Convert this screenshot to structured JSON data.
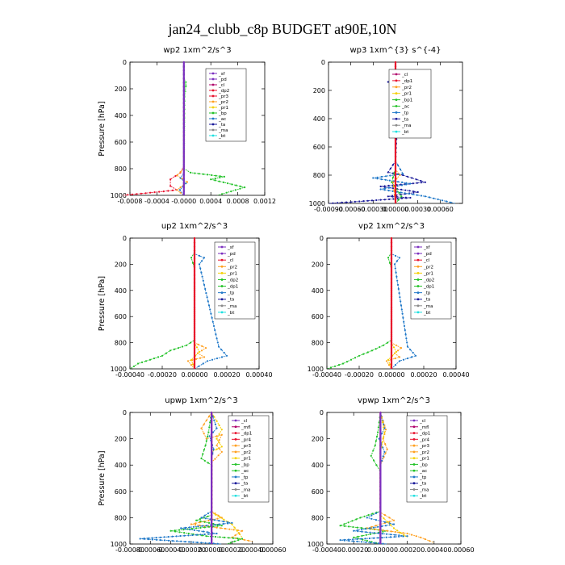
{
  "figure_title": "jan24_clubb_c8p  BUDGET at90E,10N",
  "colors": {
    "purple": "#7b2fbf",
    "magenta": "#b0006a",
    "red": "#e8112d",
    "orange": "#ffa020",
    "yellow": "#f5d000",
    "green": "#22c228",
    "blue": "#1f78c8",
    "navy": "#1a1a9a",
    "cyan": "#1ee0e0",
    "gray": "#8a8a8a",
    "lightgreen": "#9ae89a"
  },
  "chart_data": [
    {
      "id": "wp2",
      "type": "line",
      "title": "wp2   1xm^2/s^3",
      "ylabel": "Pressure [hPa]",
      "xlim": [
        -0.0008,
        0.0012
      ],
      "ylim": [
        1000,
        0
      ],
      "xticks": [
        -0.0008,
        -0.0004,
        0.0,
        0.0004,
        0.0008,
        0.0012
      ],
      "xtick_labels": [
        "-0.0008",
        "-0.0004",
        "-0.0000",
        "0.0004",
        "0.0008",
        "0.0012"
      ],
      "yticks": [
        0,
        200,
        400,
        600,
        800,
        1000
      ],
      "legend": [
        "_sf",
        "_pd",
        "_cl",
        "_dp2",
        "_pr3",
        "_pr2",
        "_pr1",
        "_bp",
        "_ac",
        "_ta",
        "_ma",
        "_bt"
      ],
      "legend_colors": [
        "purple",
        "purple",
        "magenta",
        "red",
        "red",
        "orange",
        "yellow",
        "green",
        "blue",
        "navy",
        "gray",
        "cyan"
      ],
      "series": [
        {
          "color": "green",
          "x": [
            0,
            0,
            3e-05,
            3e-05,
            1e-05,
            0,
            0.0001,
            0.0006,
            0.0004,
            0.0009,
            0.0005
          ],
          "y": [
            0,
            120,
            150,
            180,
            260,
            800,
            830,
            860,
            880,
            940,
            1000
          ]
        },
        {
          "color": "lightgreen",
          "x": [
            0,
            0,
            2e-05,
            1e-05,
            0
          ],
          "y": [
            0,
            130,
            160,
            190,
            1000
          ]
        },
        {
          "color": "red",
          "x": [
            0,
            0,
            -5e-05,
            -0.0002,
            -0.0002,
            -0.0001,
            -0.0005,
            -0.0009
          ],
          "y": [
            0,
            780,
            830,
            880,
            930,
            960,
            980,
            1000
          ]
        },
        {
          "color": "orange",
          "x": [
            0,
            0,
            -0.0001,
            5e-05,
            -0.0001,
            0
          ],
          "y": [
            0,
            800,
            850,
            900,
            960,
            1000
          ]
        },
        {
          "color": "blue",
          "x": [
            0,
            0,
            -5e-05,
            3e-05,
            -6e-05,
            0
          ],
          "y": [
            0,
            830,
            870,
            910,
            960,
            1000
          ]
        },
        {
          "color": "purple",
          "x": [
            0,
            0
          ],
          "y": [
            0,
            1000
          ]
        }
      ]
    },
    {
      "id": "wp3",
      "type": "line",
      "title": "wp3   1xm^{3} s^{-4}",
      "ylabel": "",
      "xlim": [
        -0.0009,
        0.0009
      ],
      "ylim": [
        1000,
        0
      ],
      "xticks": [
        -0.0009,
        -0.0006,
        -0.0003,
        0.0,
        0.0003,
        0.0006
      ],
      "xtick_labels": [
        "-0.00090",
        "-0.00060",
        "-0.00030",
        "0.00000",
        "0.00030",
        "0.00060"
      ],
      "yticks": [
        0,
        200,
        400,
        600,
        800,
        1000
      ],
      "legend": [
        "_cl",
        "_dp1",
        "_pr2",
        "_pr1",
        "_bp1",
        "_ac",
        "_tp",
        "_ta",
        "_ma",
        "_bt"
      ],
      "legend_colors": [
        "magenta",
        "red",
        "orange",
        "yellow",
        "green",
        "green",
        "blue",
        "navy",
        "gray",
        "cyan"
      ],
      "series": [
        {
          "color": "navy",
          "x": [
            0,
            0,
            -0.0001,
            4e-05,
            -4e-05,
            3e-05,
            0,
            -0.0001,
            0.0001,
            0.0004,
            -0.0002,
            0.0003,
            -0.0001,
            0.0002,
            -0.0006,
            -0.0009
          ],
          "y": [
            0,
            120,
            140,
            170,
            280,
            330,
            700,
            780,
            800,
            850,
            880,
            920,
            950,
            960,
            990,
            1000
          ]
        },
        {
          "color": "blue",
          "x": [
            0,
            0,
            0.0001,
            -0.0003,
            0.0002,
            -0.0002,
            0.0004,
            0.0008
          ],
          "y": [
            0,
            700,
            790,
            820,
            860,
            900,
            950,
            1000
          ]
        },
        {
          "color": "green",
          "x": [
            0,
            0,
            -5e-05,
            8e-05,
            0
          ],
          "y": [
            0,
            750,
            850,
            950,
            1000
          ]
        },
        {
          "color": "orange",
          "x": [
            0,
            0,
            6e-05,
            -3e-05,
            0
          ],
          "y": [
            0,
            760,
            800,
            850,
            1000
          ]
        },
        {
          "color": "red",
          "x": [
            0,
            0
          ],
          "y": [
            0,
            1000
          ]
        }
      ]
    },
    {
      "id": "up2",
      "type": "line",
      "title": "up2   1xm^2/s^3",
      "ylabel": "Pressure [hPa]",
      "xlim": [
        -0.0004,
        0.0004
      ],
      "ylim": [
        1000,
        0
      ],
      "xticks": [
        -0.0004,
        -0.0002,
        0.0,
        0.0002,
        0.0004
      ],
      "xtick_labels": [
        "-0.00040",
        "-0.00020",
        "0.00000",
        "0.00020",
        "0.00040"
      ],
      "yticks": [
        0,
        200,
        400,
        600,
        800,
        1000
      ],
      "legend": [
        "_sf",
        "_pd",
        "_cl",
        "_pr2",
        "_pr1",
        "_dp2",
        "_dp1",
        "_tp",
        "_ta",
        "_ma",
        "_bt"
      ],
      "legend_colors": [
        "purple",
        "purple",
        "red",
        "orange",
        "yellow",
        "green",
        "green",
        "blue",
        "navy",
        "gray",
        "cyan"
      ],
      "series": [
        {
          "color": "green",
          "x": [
            0,
            0,
            -2e-05,
            -1e-05,
            0,
            0,
            -5e-05,
            -0.00015,
            -0.0002,
            -0.00035,
            -0.0004
          ],
          "y": [
            0,
            110,
            150,
            190,
            240,
            780,
            820,
            860,
            900,
            960,
            1000
          ]
        },
        {
          "color": "blue",
          "x": [
            0,
            0,
            6e-05,
            3e-05,
            0.00015,
            0.0002,
            8e-05,
            0
          ],
          "y": [
            0,
            120,
            150,
            200,
            830,
            900,
            940,
            1000
          ]
        },
        {
          "color": "orange",
          "x": [
            0,
            0,
            7e-05,
            2e-05,
            6e-05,
            -4e-05,
            0
          ],
          "y": [
            0,
            800,
            840,
            880,
            910,
            940,
            1000
          ]
        },
        {
          "color": "yellow",
          "x": [
            0,
            0,
            3e-05,
            -2e-05,
            0
          ],
          "y": [
            0,
            800,
            870,
            930,
            1000
          ]
        },
        {
          "color": "red",
          "x": [
            0,
            0
          ],
          "y": [
            0,
            1000
          ]
        }
      ]
    },
    {
      "id": "vp2",
      "type": "line",
      "title": "vp2   1xm^2/s^3",
      "ylabel": "",
      "xlim": [
        -0.0004,
        0.0004
      ],
      "ylim": [
        1000,
        0
      ],
      "xticks": [
        -0.0004,
        -0.0002,
        0.0,
        0.0002,
        0.0004
      ],
      "xtick_labels": [
        "-0.00040",
        "-0.00020",
        "0.00000",
        "0.00020",
        "0.00040"
      ],
      "yticks": [
        0,
        200,
        400,
        600,
        800,
        1000
      ],
      "legend": [
        "_sf",
        "_pd",
        "_cl",
        "_pr2",
        "_pr1",
        "_dp2",
        "_dp1",
        "_tp",
        "_ta",
        "_ma",
        "_bt"
      ],
      "legend_colors": [
        "purple",
        "purple",
        "red",
        "orange",
        "yellow",
        "green",
        "green",
        "blue",
        "navy",
        "gray",
        "cyan"
      ],
      "series": [
        {
          "color": "green",
          "x": [
            0,
            0,
            -2e-05,
            -1e-05,
            0,
            0,
            -5e-05,
            -0.00012,
            -0.0002,
            -0.0003,
            -0.0004
          ],
          "y": [
            0,
            110,
            150,
            190,
            240,
            780,
            820,
            860,
            900,
            960,
            1000
          ]
        },
        {
          "color": "blue",
          "x": [
            0,
            0,
            5e-05,
            2e-05,
            0.0001,
            0.00015,
            5e-05,
            0
          ],
          "y": [
            0,
            120,
            150,
            200,
            830,
            900,
            940,
            1000
          ]
        },
        {
          "color": "orange",
          "x": [
            0,
            0,
            6e-05,
            2e-05,
            5e-05,
            -3e-05,
            0
          ],
          "y": [
            0,
            800,
            840,
            880,
            910,
            940,
            1000
          ]
        },
        {
          "color": "yellow",
          "x": [
            0,
            0,
            3e-05,
            -2e-05,
            0
          ],
          "y": [
            0,
            800,
            870,
            930,
            1000
          ]
        },
        {
          "color": "red",
          "x": [
            0,
            0
          ],
          "y": [
            0,
            1000
          ]
        }
      ]
    },
    {
      "id": "upwp",
      "type": "line",
      "title": "upwp   1xm^2/s^3",
      "ylabel": "Pressure [hPa]",
      "xlim": [
        -0.0008,
        0.0006
      ],
      "ylim": [
        1000,
        0
      ],
      "xticks": [
        -0.0008,
        -0.0006,
        -0.0004,
        -0.0002,
        0.0,
        0.0002,
        0.0004,
        0.0006
      ],
      "xtick_labels": [
        "-0.00080",
        "-0.00060",
        "-0.00040",
        "-0.00020",
        "0.00000",
        "0.00020",
        "0.00040",
        "0.00060"
      ],
      "yticks": [
        0,
        200,
        400,
        600,
        800,
        1000
      ],
      "legend": [
        "_cl",
        "_mfl",
        "_dp1",
        "_pr4",
        "_pr3",
        "_pr2",
        "_pr1",
        "_bp",
        "_ac",
        "_tp",
        "_ta",
        "_ma",
        "_bt"
      ],
      "legend_colors": [
        "purple",
        "magenta",
        "red",
        "red",
        "orange",
        "orange",
        "yellow",
        "green",
        "green",
        "blue",
        "navy",
        "gray",
        "cyan"
      ],
      "series": [
        {
          "color": "orange",
          "x": [
            0,
            -0.0001,
            -5e-05,
            0.0001,
            5e-05,
            0.0001,
            0,
            0,
            0.0001,
            -0.0002,
            0.0003,
            0.0002,
            0.0004
          ],
          "y": [
            0,
            120,
            200,
            170,
            250,
            300,
            380,
            750,
            800,
            850,
            900,
            950,
            980
          ]
        },
        {
          "color": "yellow",
          "x": [
            0,
            0.0001,
            5e-05,
            0.0001,
            0,
            0,
            0.0002,
            0.0003
          ],
          "y": [
            0,
            130,
            200,
            260,
            300,
            760,
            850,
            950
          ]
        },
        {
          "color": "green",
          "x": [
            0,
            -3e-05,
            -6e-05,
            -0.0001,
            0,
            0,
            -0.00015,
            0.0001,
            -0.0004,
            -5e-05,
            0.0003,
            0.00015
          ],
          "y": [
            0,
            150,
            250,
            350,
            400,
            780,
            820,
            860,
            900,
            940,
            960,
            1000
          ]
        },
        {
          "color": "blue",
          "x": [
            0,
            5e-05,
            -2e-05,
            2e-05,
            0,
            0,
            -0.0001,
            0.0002,
            -0.0003,
            5e-05,
            -0.0007,
            0.0001
          ],
          "y": [
            0,
            120,
            180,
            280,
            350,
            750,
            800,
            840,
            880,
            920,
            960,
            1000
          ]
        },
        {
          "color": "red",
          "x": [
            0,
            0
          ],
          "y": [
            0,
            1000
          ]
        },
        {
          "color": "purple",
          "x": [
            0,
            0
          ],
          "y": [
            0,
            1000
          ]
        }
      ]
    },
    {
      "id": "vpwp",
      "type": "line",
      "title": "vpwp   1xm^2/s^3",
      "ylabel": "",
      "xlim": [
        -0.0004,
        0.0006
      ],
      "ylim": [
        1000,
        0
      ],
      "xticks": [
        -0.0004,
        -0.0002,
        0.0,
        0.0002,
        0.0004,
        0.0006
      ],
      "xtick_labels": [
        "-0.00040",
        "-0.00020",
        "0.00000",
        "0.00020",
        "0.00040",
        "0.00060"
      ],
      "yticks": [
        0,
        200,
        400,
        600,
        800,
        1000
      ],
      "legend": [
        "_cl",
        "_mfl",
        "_dp1",
        "_pr4",
        "_pr3",
        "_pr2",
        "_pr1",
        "_bp",
        "_ac",
        "_tp",
        "_ta",
        "_ma",
        "_bt"
      ],
      "legend_colors": [
        "purple",
        "magenta",
        "red",
        "red",
        "orange",
        "orange",
        "yellow",
        "green",
        "green",
        "blue",
        "navy",
        "gray",
        "cyan"
      ],
      "series": [
        {
          "color": "green",
          "x": [
            0,
            -2e-05,
            -4e-05,
            -7e-05,
            -3e-05,
            0,
            0,
            -0.00015,
            -0.0003,
            5e-05,
            -0.0002,
            0
          ],
          "y": [
            0,
            150,
            250,
            330,
            400,
            450,
            750,
            800,
            860,
            900,
            950,
            1000
          ]
        },
        {
          "color": "orange",
          "x": [
            0,
            4e-05,
            2e-05,
            5e-05,
            0,
            0,
            0.0001,
            -0.0001,
            0.0002,
            0.0003,
            0.0004
          ],
          "y": [
            0,
            130,
            200,
            280,
            400,
            760,
            820,
            880,
            920,
            950,
            990
          ]
        },
        {
          "color": "blue",
          "x": [
            0,
            3e-05,
            -1e-05,
            3e-05,
            0,
            0,
            -0.0001,
            0.0001,
            -0.0002,
            0.0002,
            -0.0003,
            5e-05
          ],
          "y": [
            0,
            120,
            200,
            300,
            400,
            750,
            800,
            850,
            900,
            940,
            970,
            1000
          ]
        },
        {
          "color": "yellow",
          "x": [
            0,
            3e-05,
            0,
            0,
            0.0001,
            0.0002
          ],
          "y": [
            0,
            150,
            300,
            780,
            880,
            950
          ]
        },
        {
          "color": "red",
          "x": [
            0,
            0
          ],
          "y": [
            0,
            1000
          ]
        },
        {
          "color": "purple",
          "x": [
            0,
            0
          ],
          "y": [
            0,
            1000
          ]
        }
      ]
    }
  ]
}
